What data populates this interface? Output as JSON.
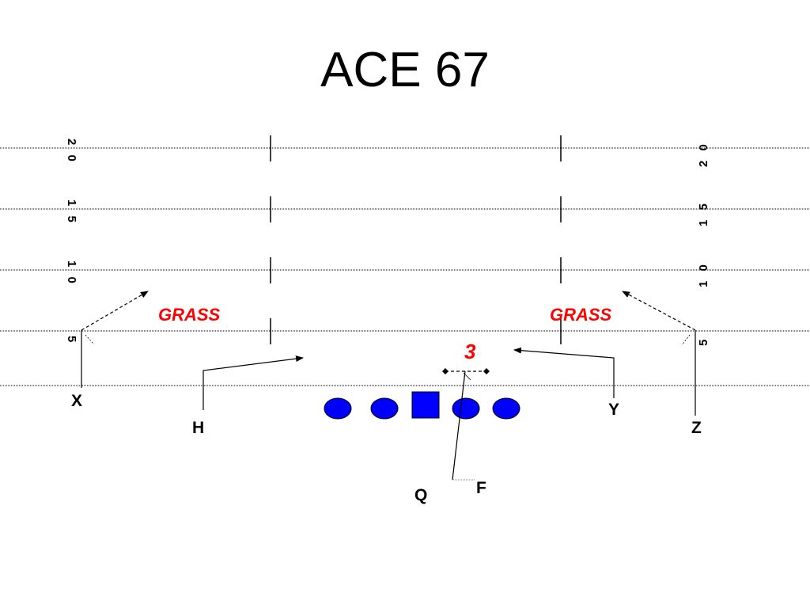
{
  "title": "ACE 67",
  "colors": {
    "line": "#0000ff",
    "call": "#ff0000",
    "ink": "#000000"
  },
  "yard_numbers": {
    "y20": "2 0",
    "y15": "1 5",
    "y10": "1 0",
    "y5": "5"
  },
  "players": {
    "x": "X",
    "h": "H",
    "q": "Q",
    "f": "F",
    "y": "Y",
    "z": "Z"
  },
  "routes": {
    "grass_left": "GRASS",
    "grass_right": "GRASS",
    "protection": "3"
  }
}
